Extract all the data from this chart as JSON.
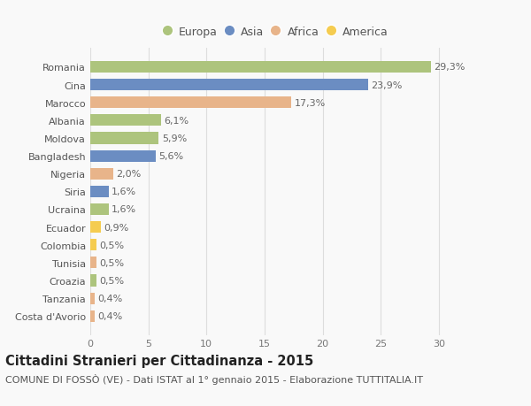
{
  "categories": [
    "Romania",
    "Cina",
    "Marocco",
    "Albania",
    "Moldova",
    "Bangladesh",
    "Nigeria",
    "Siria",
    "Ucraina",
    "Ecuador",
    "Colombia",
    "Tunisia",
    "Croazia",
    "Tanzania",
    "Costa d'Avorio"
  ],
  "values": [
    29.3,
    23.9,
    17.3,
    6.1,
    5.9,
    5.6,
    2.0,
    1.6,
    1.6,
    0.9,
    0.5,
    0.5,
    0.5,
    0.4,
    0.4
  ],
  "labels": [
    "29,3%",
    "23,9%",
    "17,3%",
    "6,1%",
    "5,9%",
    "5,6%",
    "2,0%",
    "1,6%",
    "1,6%",
    "0,9%",
    "0,5%",
    "0,5%",
    "0,5%",
    "0,4%",
    "0,4%"
  ],
  "continents": [
    "Europa",
    "Asia",
    "Africa",
    "Europa",
    "Europa",
    "Asia",
    "Africa",
    "Asia",
    "Europa",
    "America",
    "America",
    "Africa",
    "Europa",
    "Africa",
    "Africa"
  ],
  "continent_colors": {
    "Europa": "#adc47d",
    "Asia": "#6b8dc2",
    "Africa": "#e8b48a",
    "America": "#f5cc50"
  },
  "title": "Cittadini Stranieri per Cittadinanza - 2015",
  "subtitle": "COMUNE DI FOSSÒ (VE) - Dati ISTAT al 1° gennaio 2015 - Elaborazione TUTTITALIA.IT",
  "xlim": [
    0,
    32
  ],
  "xticks": [
    0,
    5,
    10,
    15,
    20,
    25,
    30
  ],
  "background_color": "#f9f9f9",
  "grid_color": "#dddddd",
  "bar_height": 0.65,
  "title_fontsize": 10.5,
  "subtitle_fontsize": 8,
  "label_fontsize": 8,
  "tick_fontsize": 8,
  "legend_fontsize": 9
}
